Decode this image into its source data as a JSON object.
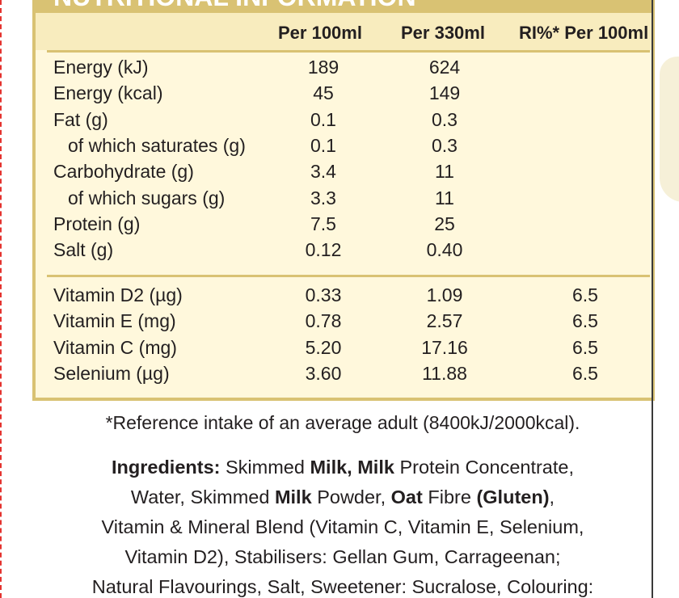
{
  "panel_title": "NUTRITIONAL INFORMATION",
  "columns": [
    "Per 100ml",
    "Per 330ml",
    "RI%* Per 100ml"
  ],
  "nutrients": [
    {
      "label": "Energy (kJ)",
      "per100": "189",
      "per330": "624",
      "ri": "",
      "indent": false
    },
    {
      "label": "Energy (kcal)",
      "per100": "45",
      "per330": "149",
      "ri": "",
      "indent": false
    },
    {
      "label": "Fat (g)",
      "per100": "0.1",
      "per330": "0.3",
      "ri": "",
      "indent": false
    },
    {
      "label": "of which saturates (g)",
      "per100": "0.1",
      "per330": "0.3",
      "ri": "",
      "indent": true
    },
    {
      "label": "Carbohydrate (g)",
      "per100": "3.4",
      "per330": "11",
      "ri": "",
      "indent": false
    },
    {
      "label": "of which sugars (g)",
      "per100": "3.3",
      "per330": "11",
      "ri": "",
      "indent": true
    },
    {
      "label": "Protein (g)",
      "per100": "7.5",
      "per330": "25",
      "ri": "",
      "indent": false
    },
    {
      "label": "Salt (g)",
      "per100": "0.12",
      "per330": "0.40",
      "ri": "",
      "indent": false
    }
  ],
  "vitamins": [
    {
      "label": "Vitamin D2 (µg)",
      "per100": "0.33",
      "per330": "1.09",
      "ri": "6.5"
    },
    {
      "label": "Vitamin E (mg)",
      "per100": "0.78",
      "per330": "2.57",
      "ri": "6.5"
    },
    {
      "label": "Vitamin C (mg)",
      "per100": "5.20",
      "per330": "17.16",
      "ri": "6.5"
    },
    {
      "label": "Selenium (µg)",
      "per100": "3.60",
      "per330": "11.88",
      "ri": "6.5"
    }
  ],
  "footnote": "*Reference intake of an average adult (8400kJ/2000kcal).",
  "ingredients": {
    "lines": [
      [
        {
          "t": "Ingredients:",
          "b": true
        },
        {
          "t": " Skimmed ",
          "b": false
        },
        {
          "t": "Milk, Milk",
          "b": true
        },
        {
          "t": " Protein Concentrate,",
          "b": false
        }
      ],
      [
        {
          "t": "Water, Skimmed ",
          "b": false
        },
        {
          "t": "Milk",
          "b": true
        },
        {
          "t": " Powder, ",
          "b": false
        },
        {
          "t": "Oat",
          "b": true
        },
        {
          "t": " Fibre ",
          "b": false
        },
        {
          "t": "(Gluten)",
          "b": true
        },
        {
          "t": ",",
          "b": false
        }
      ],
      [
        {
          "t": "Vitamin & Mineral Blend (Vitamin C, Vitamin E, Selenium,",
          "b": false
        }
      ],
      [
        {
          "t": "Vitamin D2), Stabilisers: Gellan Gum, Carrageenan;",
          "b": false
        }
      ],
      [
        {
          "t": "Natural Flavourings, Salt, Sweetener: Sucralose, Colouring:",
          "b": false
        }
      ]
    ]
  },
  "colors": {
    "panel_bg": "#fff8dc",
    "header_bg": "#f8ecbe",
    "border": "#d9c273",
    "dashed_edge": "#e4332f"
  }
}
